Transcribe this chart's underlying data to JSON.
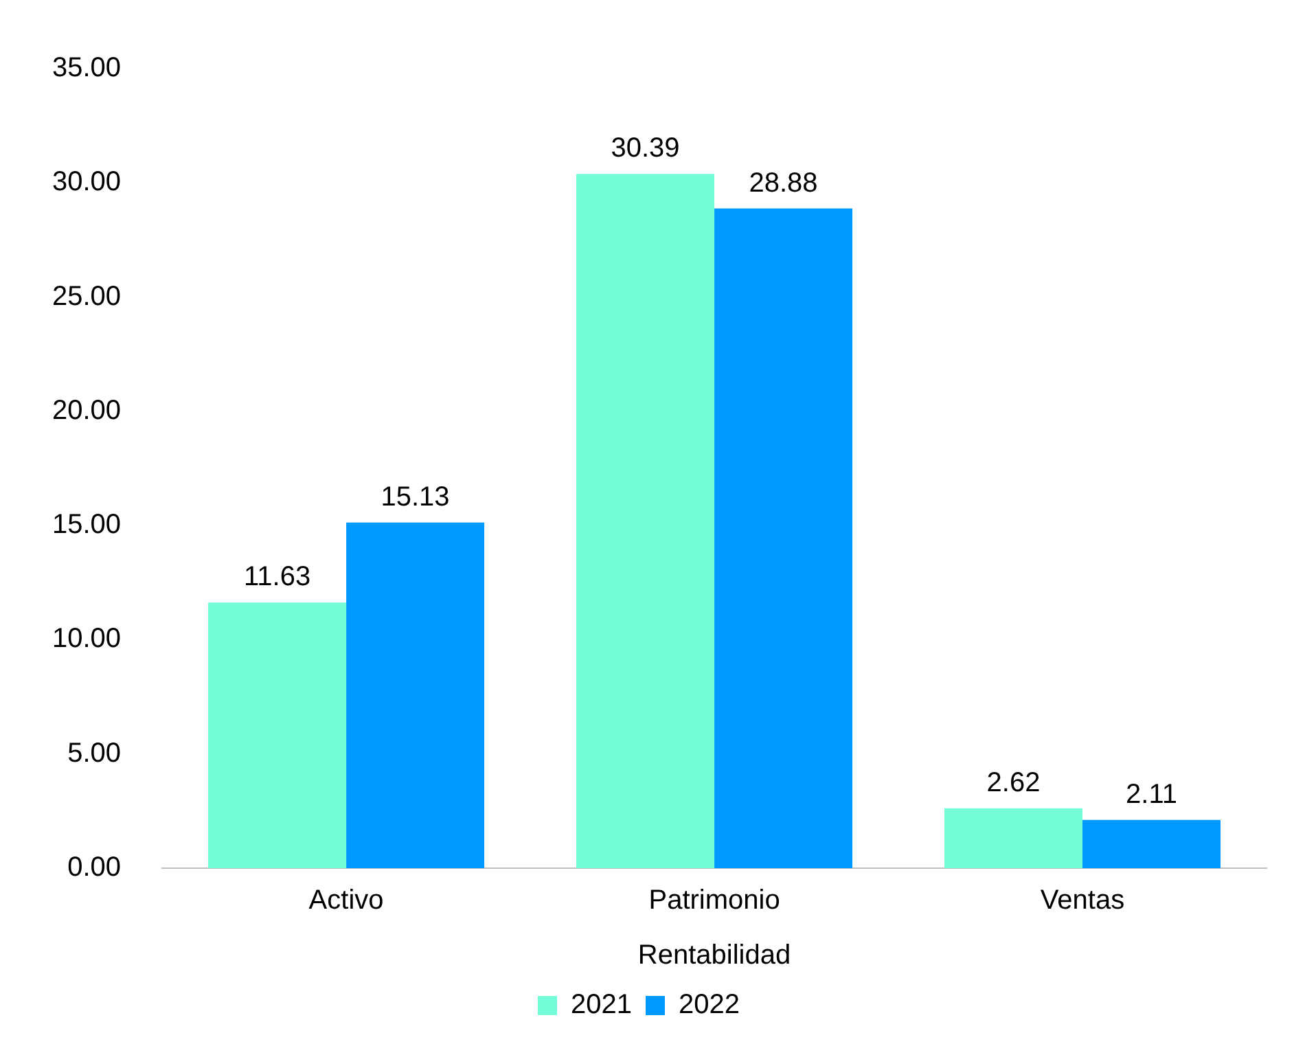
{
  "chart_data": {
    "type": "bar",
    "xlabel": "Rentabilidad",
    "categories": [
      "Activo",
      "Patrimonio",
      "Ventas"
    ],
    "series": [
      {
        "name": "2021",
        "color": "#73fcd6",
        "values": [
          11.63,
          30.39,
          2.62
        ]
      },
      {
        "name": "2022",
        "color": "#0099ff",
        "values": [
          15.13,
          28.88,
          2.11
        ]
      }
    ],
    "ylim": [
      0,
      35
    ],
    "yticks": [
      {
        "value": 0,
        "label": "0.00"
      },
      {
        "value": 5,
        "label": "5.00"
      },
      {
        "value": 10,
        "label": "10.00"
      },
      {
        "value": 15,
        "label": "15.00"
      },
      {
        "value": 20,
        "label": "20.00"
      },
      {
        "value": 25,
        "label": "25.00"
      },
      {
        "value": 30,
        "label": "30.00"
      },
      {
        "value": 35,
        "label": "35.00"
      }
    ],
    "grid": false,
    "legend": "bottom",
    "data_labels": true
  }
}
